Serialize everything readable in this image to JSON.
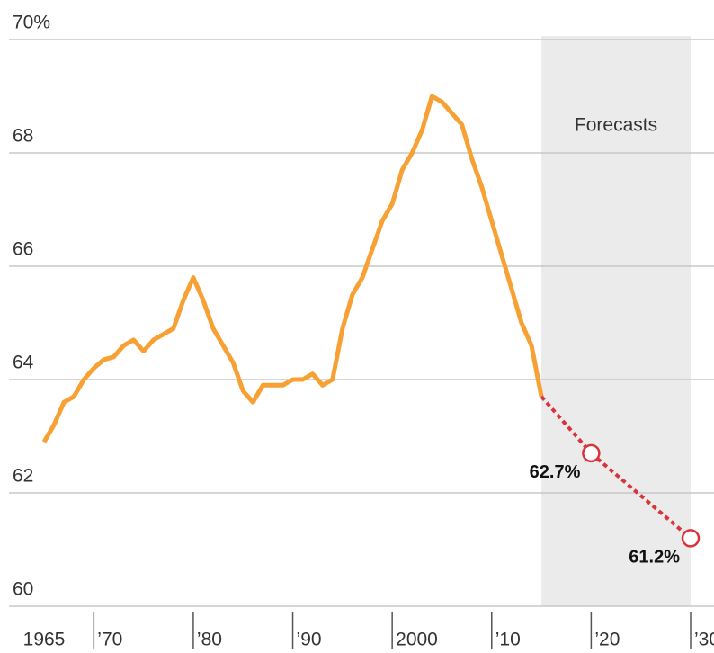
{
  "chart_data": {
    "type": "line",
    "annotation": "Forecasts",
    "forecast_range": [
      2015,
      2030
    ],
    "xlim": [
      1965,
      2030
    ],
    "xticks": [
      1965,
      {
        "value": 1970,
        "label": "’70"
      },
      {
        "value": 1980,
        "label": "’80"
      },
      {
        "value": 1990,
        "label": "’90"
      },
      2000,
      {
        "value": 2010,
        "label": "’10"
      },
      {
        "value": 2020,
        "label": "’20"
      },
      {
        "value": 2030,
        "label": "’30"
      }
    ],
    "ylim": [
      60,
      70
    ],
    "yticks": [
      60,
      62,
      64,
      66,
      68,
      {
        "value": 70,
        "label": "70%"
      }
    ],
    "grid": true,
    "series": [
      {
        "color": "#f7a033",
        "style": "solid",
        "x": [
          1965,
          1966,
          1967,
          1968,
          1969,
          1970,
          1971,
          1972,
          1973,
          1974,
          1975,
          1976,
          1977,
          1978,
          1979,
          1980,
          1981,
          1982,
          1983,
          1984,
          1985,
          1986,
          1987,
          1988,
          1989,
          1990,
          1991,
          1992,
          1993,
          1994,
          1995,
          1996,
          1997,
          1998,
          1999,
          2000,
          2001,
          2002,
          2003,
          2004,
          2005,
          2006,
          2007,
          2008,
          2009,
          2010,
          2011,
          2012,
          2013,
          2014,
          2015
        ],
        "values": [
          62.9,
          63.2,
          63.6,
          63.7,
          64.0,
          64.2,
          64.35,
          64.4,
          64.6,
          64.7,
          64.5,
          64.7,
          64.8,
          64.9,
          65.4,
          65.8,
          65.4,
          64.9,
          64.6,
          64.3,
          63.8,
          63.6,
          63.9,
          63.9,
          63.9,
          64.0,
          64.0,
          64.1,
          63.9,
          64.0,
          64.9,
          65.5,
          65.8,
          66.3,
          66.8,
          67.1,
          67.7,
          68.0,
          68.4,
          69.0,
          68.9,
          68.7,
          68.5,
          67.9,
          67.4,
          66.8,
          66.2,
          65.6,
          65.0,
          64.6,
          63.7
        ]
      },
      {
        "color": "#d9343b",
        "style": "dashed",
        "x": [
          2020,
          2030
        ],
        "values": [
          62.7,
          61.2
        ],
        "value_labels": [
          "62.7%",
          "61.2%"
        ]
      }
    ]
  }
}
